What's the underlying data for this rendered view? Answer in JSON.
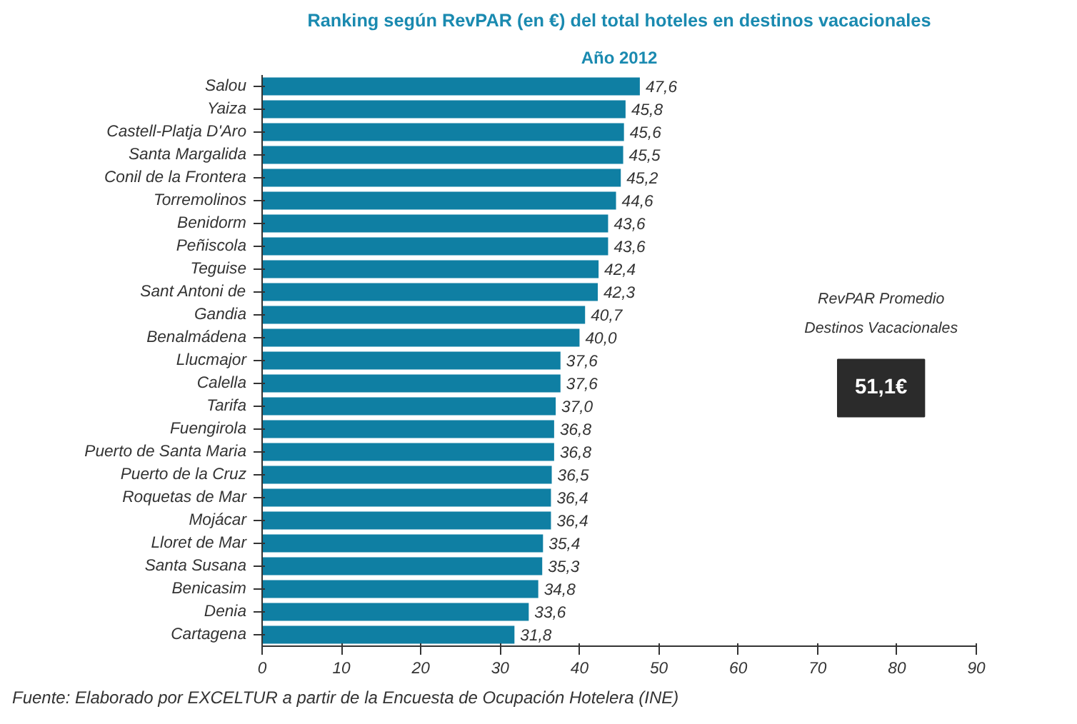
{
  "chart_data": {
    "type": "bar",
    "orientation": "horizontal",
    "title": "Ranking según RevPAR (en €) del total hoteles en destinos vacacionales",
    "subtitle": "Año 2012",
    "categories": [
      "Salou",
      "Yaiza",
      "Castell-Platja D'Aro",
      "Santa Margalida",
      "Conil de la Frontera",
      "Torremolinos",
      "Benidorm",
      "Peñiscola",
      "Teguise",
      "Sant Antoni de",
      "Gandia",
      "Benalmádena",
      "Llucmajor",
      "Calella",
      "Tarifa",
      "Fuengirola",
      "Puerto de Santa Maria",
      "Puerto de la Cruz",
      "Roquetas de Mar",
      "Mojácar",
      "Lloret de Mar",
      "Santa Susana",
      "Benicasim",
      "Denia",
      "Cartagena"
    ],
    "values": [
      47.6,
      45.8,
      45.6,
      45.5,
      45.2,
      44.6,
      43.6,
      43.6,
      42.4,
      42.3,
      40.7,
      40.0,
      37.6,
      37.6,
      37.0,
      36.8,
      36.8,
      36.5,
      36.4,
      36.4,
      35.4,
      35.3,
      34.8,
      33.6,
      31.8
    ],
    "value_labels": [
      "47,6",
      "45,8",
      "45,6",
      "45,5",
      "45,2",
      "44,6",
      "43,6",
      "43,6",
      "42,4",
      "42,3",
      "40,7",
      "40,0",
      "37,6",
      "37,6",
      "37,0",
      "36,8",
      "36,8",
      "36,5",
      "36,4",
      "36,4",
      "35,4",
      "35,3",
      "34,8",
      "33,6",
      "31,8"
    ],
    "color": "#0f7fa3",
    "xlim": [
      0,
      90
    ],
    "xticks": [
      0,
      10,
      20,
      30,
      40,
      50,
      60,
      70,
      80,
      90
    ],
    "grid": false,
    "annotations": [
      "RevPAR Promedio\nDestinos Vacacionales",
      "51,1€",
      "Fuente: Elaborado por EXCELTUR a partir de la Encuesta de Ocupación Hotelera (INE)"
    ]
  }
}
